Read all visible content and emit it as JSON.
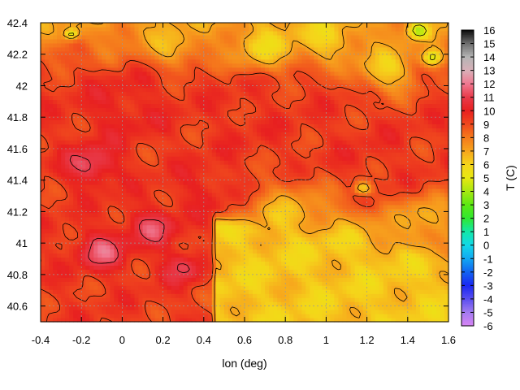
{
  "chart_data": {
    "type": "heatmap",
    "title": "",
    "xlabel": "lon (deg)",
    "ylabel": "",
    "colorbar_label": "T (C)",
    "xlim": [
      -0.4,
      1.6
    ],
    "ylim": [
      40.5,
      42.4
    ],
    "x_ticks": [
      {
        "value": -0.4,
        "label": "-0.4"
      },
      {
        "value": -0.2,
        "label": "-0.2"
      },
      {
        "value": 0,
        "label": "0"
      },
      {
        "value": 0.2,
        "label": "0.2"
      },
      {
        "value": 0.4,
        "label": "0.4"
      },
      {
        "value": 0.6,
        "label": "0.6"
      },
      {
        "value": 0.8,
        "label": "0.8"
      },
      {
        "value": 1,
        "label": "1"
      },
      {
        "value": 1.2,
        "label": "1.2"
      },
      {
        "value": 1.4,
        "label": "1.4"
      },
      {
        "value": 1.6,
        "label": "1.6"
      }
    ],
    "y_ticks": [
      {
        "value": 40.6,
        "label": "40.6"
      },
      {
        "value": 40.8,
        "label": "40.8"
      },
      {
        "value": 41,
        "label": "41"
      },
      {
        "value": 41.2,
        "label": "41.2"
      },
      {
        "value": 41.4,
        "label": "41.4"
      },
      {
        "value": 41.6,
        "label": "41.6"
      },
      {
        "value": 41.8,
        "label": "41.8"
      },
      {
        "value": 42,
        "label": "42"
      },
      {
        "value": 42.2,
        "label": "42.2"
      },
      {
        "value": 42.4,
        "label": "42.4"
      }
    ],
    "colorbar_range": [
      -6,
      16
    ],
    "colorbar_ticks": [
      {
        "value": 16,
        "label": "16"
      },
      {
        "value": 15,
        "label": "15"
      },
      {
        "value": 14,
        "label": "14"
      },
      {
        "value": 13,
        "label": "13"
      },
      {
        "value": 12,
        "label": "12"
      },
      {
        "value": 11,
        "label": "11"
      },
      {
        "value": 10,
        "label": "10"
      },
      {
        "value": 9,
        "label": "9"
      },
      {
        "value": 8,
        "label": "8"
      },
      {
        "value": 7,
        "label": "7"
      },
      {
        "value": 6,
        "label": "6"
      },
      {
        "value": 5,
        "label": "5"
      },
      {
        "value": 4,
        "label": "4"
      },
      {
        "value": 3,
        "label": "3"
      },
      {
        "value": 2,
        "label": "2"
      },
      {
        "value": 1,
        "label": "1"
      },
      {
        "value": 0,
        "label": "0"
      },
      {
        "value": -1,
        "label": "-1"
      },
      {
        "value": -2,
        "label": "-2"
      },
      {
        "value": -3,
        "label": "-3"
      },
      {
        "value": -4,
        "label": "-4"
      },
      {
        "value": -5,
        "label": "-5"
      },
      {
        "value": -6,
        "label": "-6"
      }
    ],
    "colormap": [
      {
        "value": -6,
        "color": "#d783f5"
      },
      {
        "value": -5,
        "color": "#a37cf0"
      },
      {
        "value": -4,
        "color": "#5a4ef0"
      },
      {
        "value": -3,
        "color": "#1a28f2"
      },
      {
        "value": -2,
        "color": "#1264f2"
      },
      {
        "value": -1,
        "color": "#12a8f2"
      },
      {
        "value": 0,
        "color": "#12d8e8"
      },
      {
        "value": 1,
        "color": "#12e8a8"
      },
      {
        "value": 2,
        "color": "#30e830"
      },
      {
        "value": 3,
        "color": "#5ce812"
      },
      {
        "value": 4,
        "color": "#a8e812"
      },
      {
        "value": 5,
        "color": "#e8e812"
      },
      {
        "value": 6,
        "color": "#f5d41a"
      },
      {
        "value": 7,
        "color": "#f7a51d"
      },
      {
        "value": 8,
        "color": "#f57a1c"
      },
      {
        "value": 9,
        "color": "#f0481e"
      },
      {
        "value": 10,
        "color": "#e82020"
      },
      {
        "value": 11,
        "color": "#e83a4a"
      },
      {
        "value": 12,
        "color": "#f07890"
      },
      {
        "value": 13,
        "color": "#d8b0b8"
      },
      {
        "value": 14,
        "color": "#b4b4b4"
      },
      {
        "value": 15,
        "color": "#6e6e6e"
      },
      {
        "value": 16,
        "color": "#0a0a0a"
      }
    ],
    "grid": true,
    "contours": true,
    "field_anchors": [
      {
        "lon": 1.45,
        "lat": 42.35,
        "t": 4,
        "r": 0.05
      },
      {
        "lon": 1.52,
        "lat": 42.18,
        "t": 4,
        "r": 0.05
      },
      {
        "lon": 1.18,
        "lat": 41.35,
        "t": 4,
        "r": 0.04
      },
      {
        "lon": -0.25,
        "lat": 42.33,
        "t": 3.5,
        "r": 0.03
      },
      {
        "lon": 0.25,
        "lat": 42.25,
        "t": 6.5,
        "r": 0.12
      },
      {
        "lon": 0.7,
        "lat": 42.25,
        "t": 6,
        "r": 0.15
      },
      {
        "lon": 1.0,
        "lat": 42.3,
        "t": 6,
        "r": 0.15
      },
      {
        "lon": 1.3,
        "lat": 42.1,
        "t": 6,
        "r": 0.15
      },
      {
        "lon": 0.8,
        "lat": 41.15,
        "t": 6.5,
        "r": 0.22
      },
      {
        "lon": 1.1,
        "lat": 40.95,
        "t": 6,
        "r": 0.25
      },
      {
        "lon": 1.4,
        "lat": 40.8,
        "t": 6,
        "r": 0.25
      },
      {
        "lon": 0.75,
        "lat": 40.65,
        "t": 5.8,
        "r": 0.2
      },
      {
        "lon": 1.5,
        "lat": 41.15,
        "t": 6.5,
        "r": 0.15
      },
      {
        "lon": -0.15,
        "lat": 41.5,
        "t": 11.5,
        "r": 0.12
      },
      {
        "lon": -0.1,
        "lat": 40.95,
        "t": 11.5,
        "r": 0.12
      },
      {
        "lon": 0.15,
        "lat": 41.1,
        "t": 11.2,
        "r": 0.12
      },
      {
        "lon": 0.3,
        "lat": 40.85,
        "t": 11,
        "r": 0.1
      },
      {
        "lon": 0.5,
        "lat": 40.9,
        "t": 7,
        "r": 0.06
      },
      {
        "lon": 0.0,
        "lat": 41.85,
        "t": 10,
        "r": 0.2
      },
      {
        "lon": 0.6,
        "lat": 41.75,
        "t": 9.5,
        "r": 0.2
      },
      {
        "lon": 1.2,
        "lat": 41.6,
        "t": 9.5,
        "r": 0.2
      },
      {
        "lon": 0.4,
        "lat": 41.35,
        "t": 10,
        "r": 0.15
      }
    ]
  }
}
